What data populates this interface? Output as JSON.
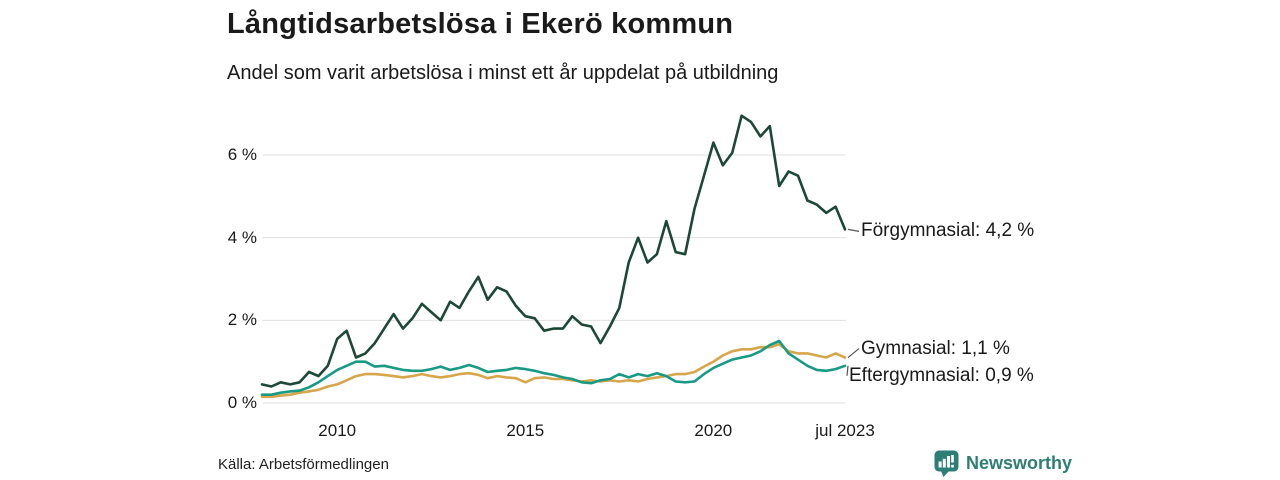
{
  "header": {
    "title": "Långtidsarbetslösa i Ekerö kommun",
    "subtitle": "Andel som varit arbetslösa i minst ett år uppdelat på utbildning"
  },
  "chart_data": {
    "type": "line",
    "unit": "%",
    "grid": "horizontal",
    "x_start": 2008.0,
    "x_step": 0.25,
    "x_end": 2023.5,
    "ylim": [
      0,
      7.2
    ],
    "x_ticks": [
      {
        "value": 2010,
        "label": "2010"
      },
      {
        "value": 2015,
        "label": "2015"
      },
      {
        "value": 2020,
        "label": "2020"
      },
      {
        "value": 2023.5,
        "label": "jul 2023"
      }
    ],
    "y_ticks": [
      {
        "value": 0,
        "label": "0 %"
      },
      {
        "value": 2,
        "label": "2 %"
      },
      {
        "value": 4,
        "label": "4 %"
      },
      {
        "value": 6,
        "label": "6 %"
      }
    ],
    "series": [
      {
        "name": "Förgymnasial",
        "slug": "forgymnasial",
        "color": "#1d4736",
        "end_label": "Förgymnasial: 4,2 %",
        "latest_value": "4,2 %",
        "values": [
          0.45,
          0.4,
          0.5,
          0.45,
          0.5,
          0.75,
          0.65,
          0.9,
          1.55,
          1.75,
          1.1,
          1.2,
          1.45,
          1.8,
          2.15,
          1.8,
          2.05,
          2.4,
          2.2,
          2.0,
          2.45,
          2.3,
          2.7,
          3.05,
          2.5,
          2.8,
          2.7,
          2.35,
          2.1,
          2.05,
          1.75,
          1.8,
          1.8,
          2.1,
          1.9,
          1.85,
          1.45,
          1.85,
          2.3,
          3.4,
          4.0,
          3.4,
          3.6,
          4.4,
          3.65,
          3.6,
          4.7,
          5.5,
          6.3,
          5.75,
          6.05,
          6.95,
          6.8,
          6.45,
          6.7,
          5.25,
          5.6,
          5.5,
          4.9,
          4.8,
          4.6,
          4.75,
          4.2
        ]
      },
      {
        "name": "Gymnasial",
        "slug": "gymnasial",
        "color": "#d7a64b",
        "end_label": "Gymnasial: 1,1 %",
        "latest_value": "1,1 %",
        "values": [
          0.15,
          0.15,
          0.18,
          0.2,
          0.25,
          0.28,
          0.32,
          0.4,
          0.45,
          0.55,
          0.65,
          0.7,
          0.7,
          0.68,
          0.65,
          0.62,
          0.65,
          0.7,
          0.65,
          0.62,
          0.65,
          0.7,
          0.72,
          0.68,
          0.6,
          0.65,
          0.62,
          0.6,
          0.5,
          0.6,
          0.62,
          0.58,
          0.58,
          0.55,
          0.52,
          0.55,
          0.52,
          0.55,
          0.52,
          0.55,
          0.52,
          0.58,
          0.62,
          0.65,
          0.7,
          0.7,
          0.75,
          0.88,
          1.0,
          1.15,
          1.25,
          1.3,
          1.3,
          1.35,
          1.35,
          1.42,
          1.25,
          1.2,
          1.2,
          1.15,
          1.1,
          1.2,
          1.1
        ]
      },
      {
        "name": "Eftergymnasial",
        "slug": "eftergymnasial",
        "color": "#189a84",
        "end_label": "Eftergymnasial: 0,9 %",
        "latest_value": "0,9 %",
        "values": [
          0.2,
          0.2,
          0.25,
          0.28,
          0.3,
          0.38,
          0.5,
          0.65,
          0.8,
          0.9,
          1.0,
          1.0,
          0.88,
          0.9,
          0.85,
          0.8,
          0.78,
          0.78,
          0.82,
          0.88,
          0.8,
          0.85,
          0.92,
          0.85,
          0.75,
          0.78,
          0.8,
          0.85,
          0.82,
          0.78,
          0.72,
          0.68,
          0.62,
          0.58,
          0.5,
          0.48,
          0.55,
          0.58,
          0.7,
          0.62,
          0.7,
          0.65,
          0.72,
          0.65,
          0.52,
          0.5,
          0.52,
          0.7,
          0.85,
          0.95,
          1.05,
          1.1,
          1.15,
          1.25,
          1.4,
          1.5,
          1.2,
          1.05,
          0.9,
          0.8,
          0.78,
          0.82,
          0.9
        ]
      }
    ]
  },
  "footer": {
    "source": "Källa: Arbetsförmedlingen",
    "brand": "Newsworthy"
  },
  "colors": {
    "forgymnasial": "#1d4736",
    "gymnasial": "#d7a64b",
    "eftergymnasial": "#189a84",
    "brand_teal": "#2d7f75",
    "gridline": "#e0e0e0"
  }
}
